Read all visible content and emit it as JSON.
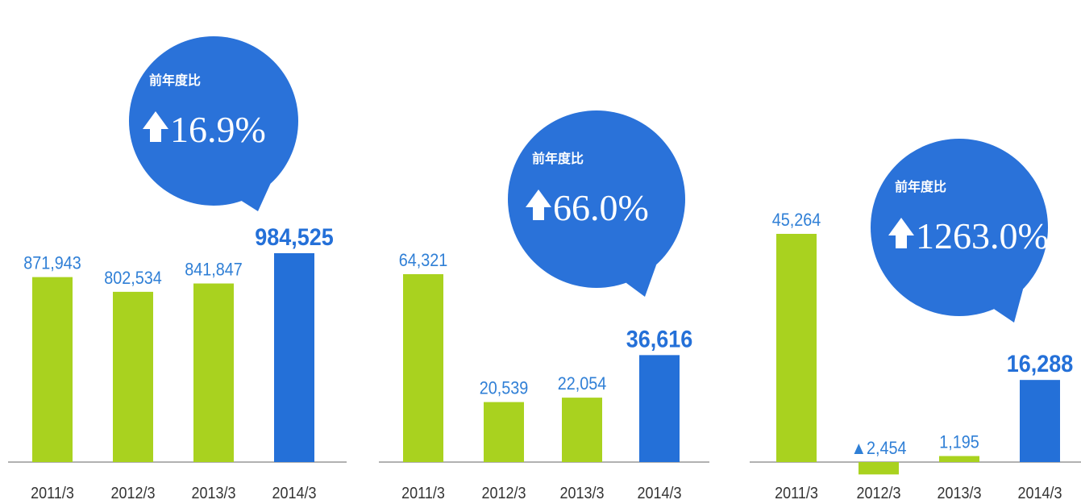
{
  "chart_data": [
    {
      "type": "bar",
      "categories": [
        "2011/3",
        "2012/3",
        "2013/3",
        "2014/3"
      ],
      "values": [
        871943,
        802534,
        841847,
        984525
      ],
      "value_labels": [
        "871,943",
        "802,534",
        "841,847",
        "984,525"
      ],
      "colors": [
        "#a9d21f",
        "#a9d21f",
        "#a9d21f",
        "#2470d8"
      ],
      "callout": {
        "text": "前年度比",
        "value": 16.9,
        "label": "16.9%"
      }
    },
    {
      "type": "bar",
      "categories": [
        "2011/3",
        "2012/3",
        "2013/3",
        "2014/3"
      ],
      "values": [
        64321,
        20539,
        22054,
        36616
      ],
      "value_labels": [
        "64,321",
        "20,539",
        "22,054",
        "36,616"
      ],
      "colors": [
        "#a9d21f",
        "#a9d21f",
        "#a9d21f",
        "#2470d8"
      ],
      "callout": {
        "text": "前年度比",
        "value": 66.0,
        "label": "66.0%"
      }
    },
    {
      "type": "bar",
      "categories": [
        "2011/3",
        "2012/3",
        "2013/3",
        "2014/3"
      ],
      "values": [
        45264,
        -2454,
        1195,
        16288
      ],
      "value_labels": [
        "45,264",
        "▲2,454",
        "1,195",
        "16,288"
      ],
      "colors": [
        "#a9d21f",
        "#a9d21f",
        "#a9d21f",
        "#2470d8"
      ],
      "callout": {
        "text": "前年度比",
        "value": 1263.0,
        "label": "1263.0%"
      }
    }
  ]
}
